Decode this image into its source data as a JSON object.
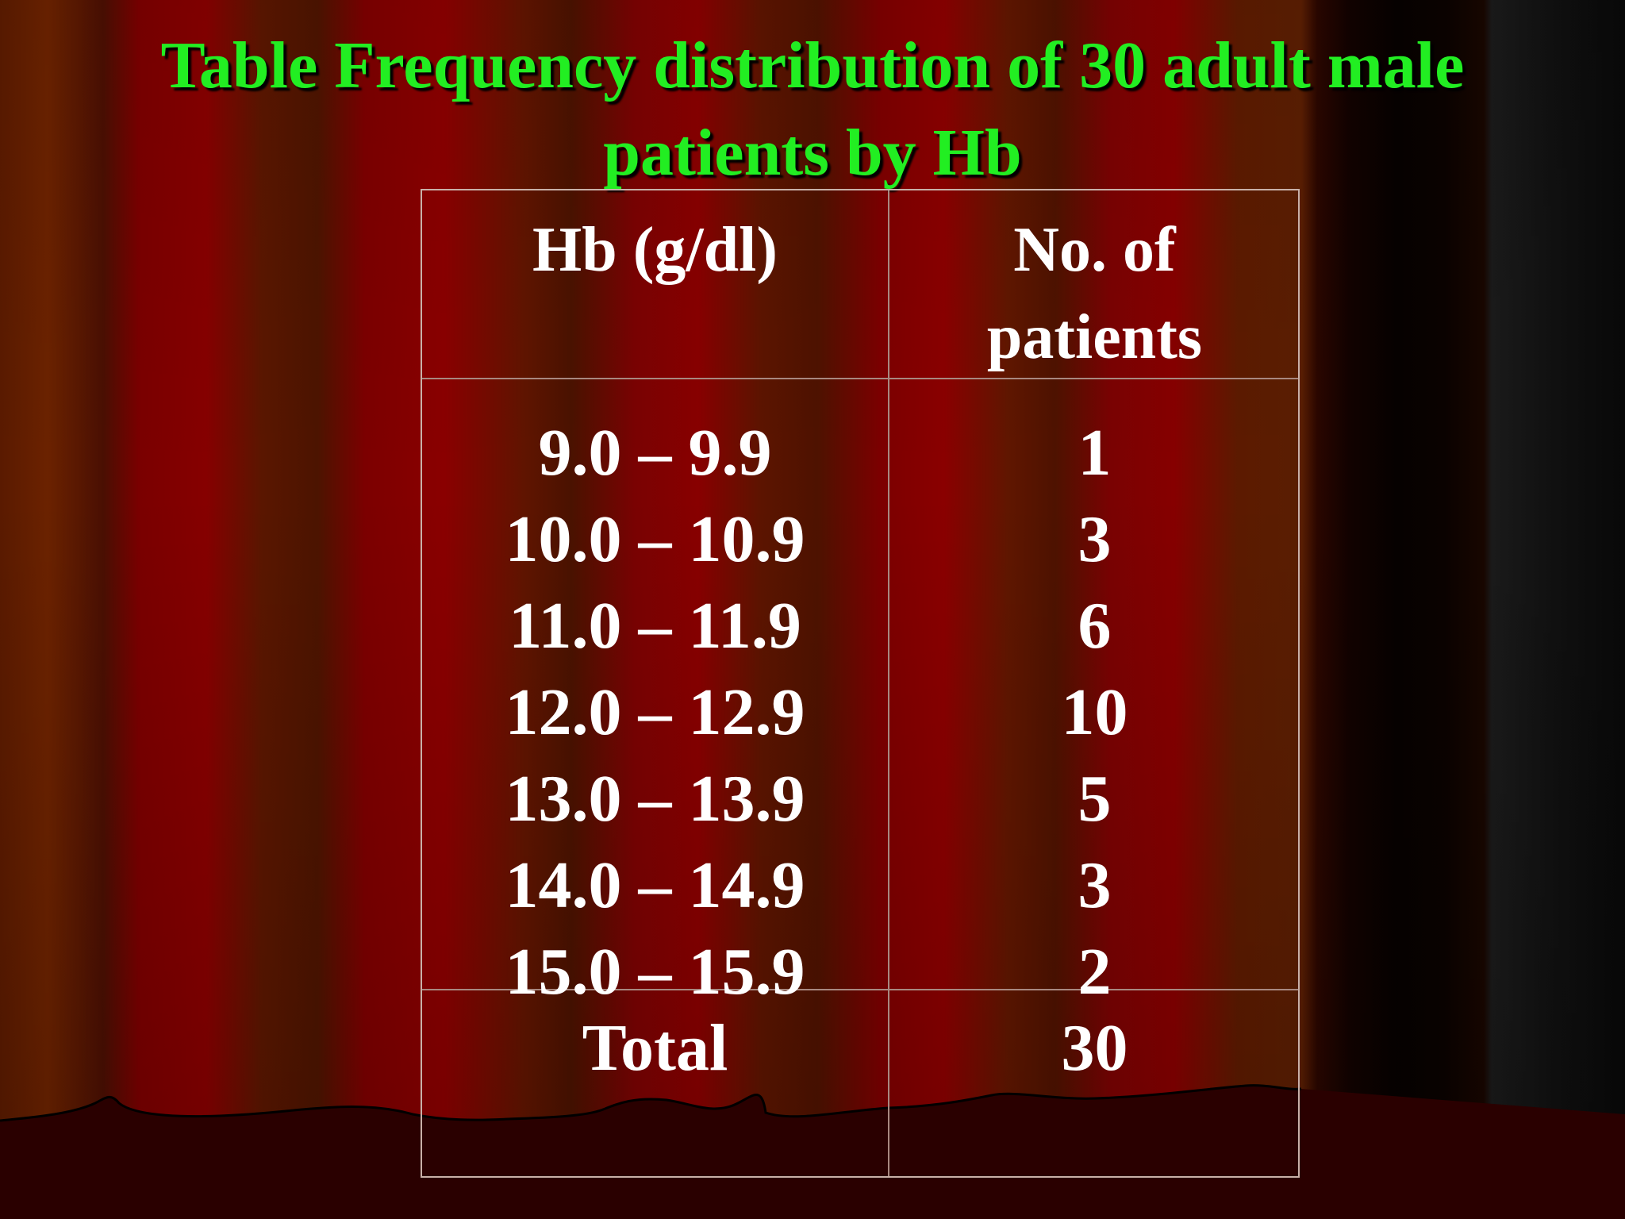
{
  "slide": {
    "title_line1": "Table Frequency distribution of 30 adult male",
    "title_line2": "patients by Hb"
  },
  "table": {
    "header": {
      "col1": "Hb (g/dl)",
      "col2_line1": "No. of",
      "col2_line2": "patients"
    },
    "rows": [
      {
        "range": "9.0 – 9.9",
        "count": "1"
      },
      {
        "range": "10.0 – 10.9",
        "count": "3"
      },
      {
        "range": "11.0 – 11.9",
        "count": "6"
      },
      {
        "range": "12.0 – 12.9",
        "count": "10"
      },
      {
        "range": "13.0 – 13.9",
        "count": "5"
      },
      {
        "range": "14.0 – 14.9",
        "count": "3"
      },
      {
        "range": "15.0 – 15.9",
        "count": "2"
      }
    ],
    "total": {
      "label": "Total",
      "value": "30"
    }
  },
  "colors": {
    "title": "#22ee22",
    "text": "#ffffff",
    "curtain": "#860000"
  }
}
